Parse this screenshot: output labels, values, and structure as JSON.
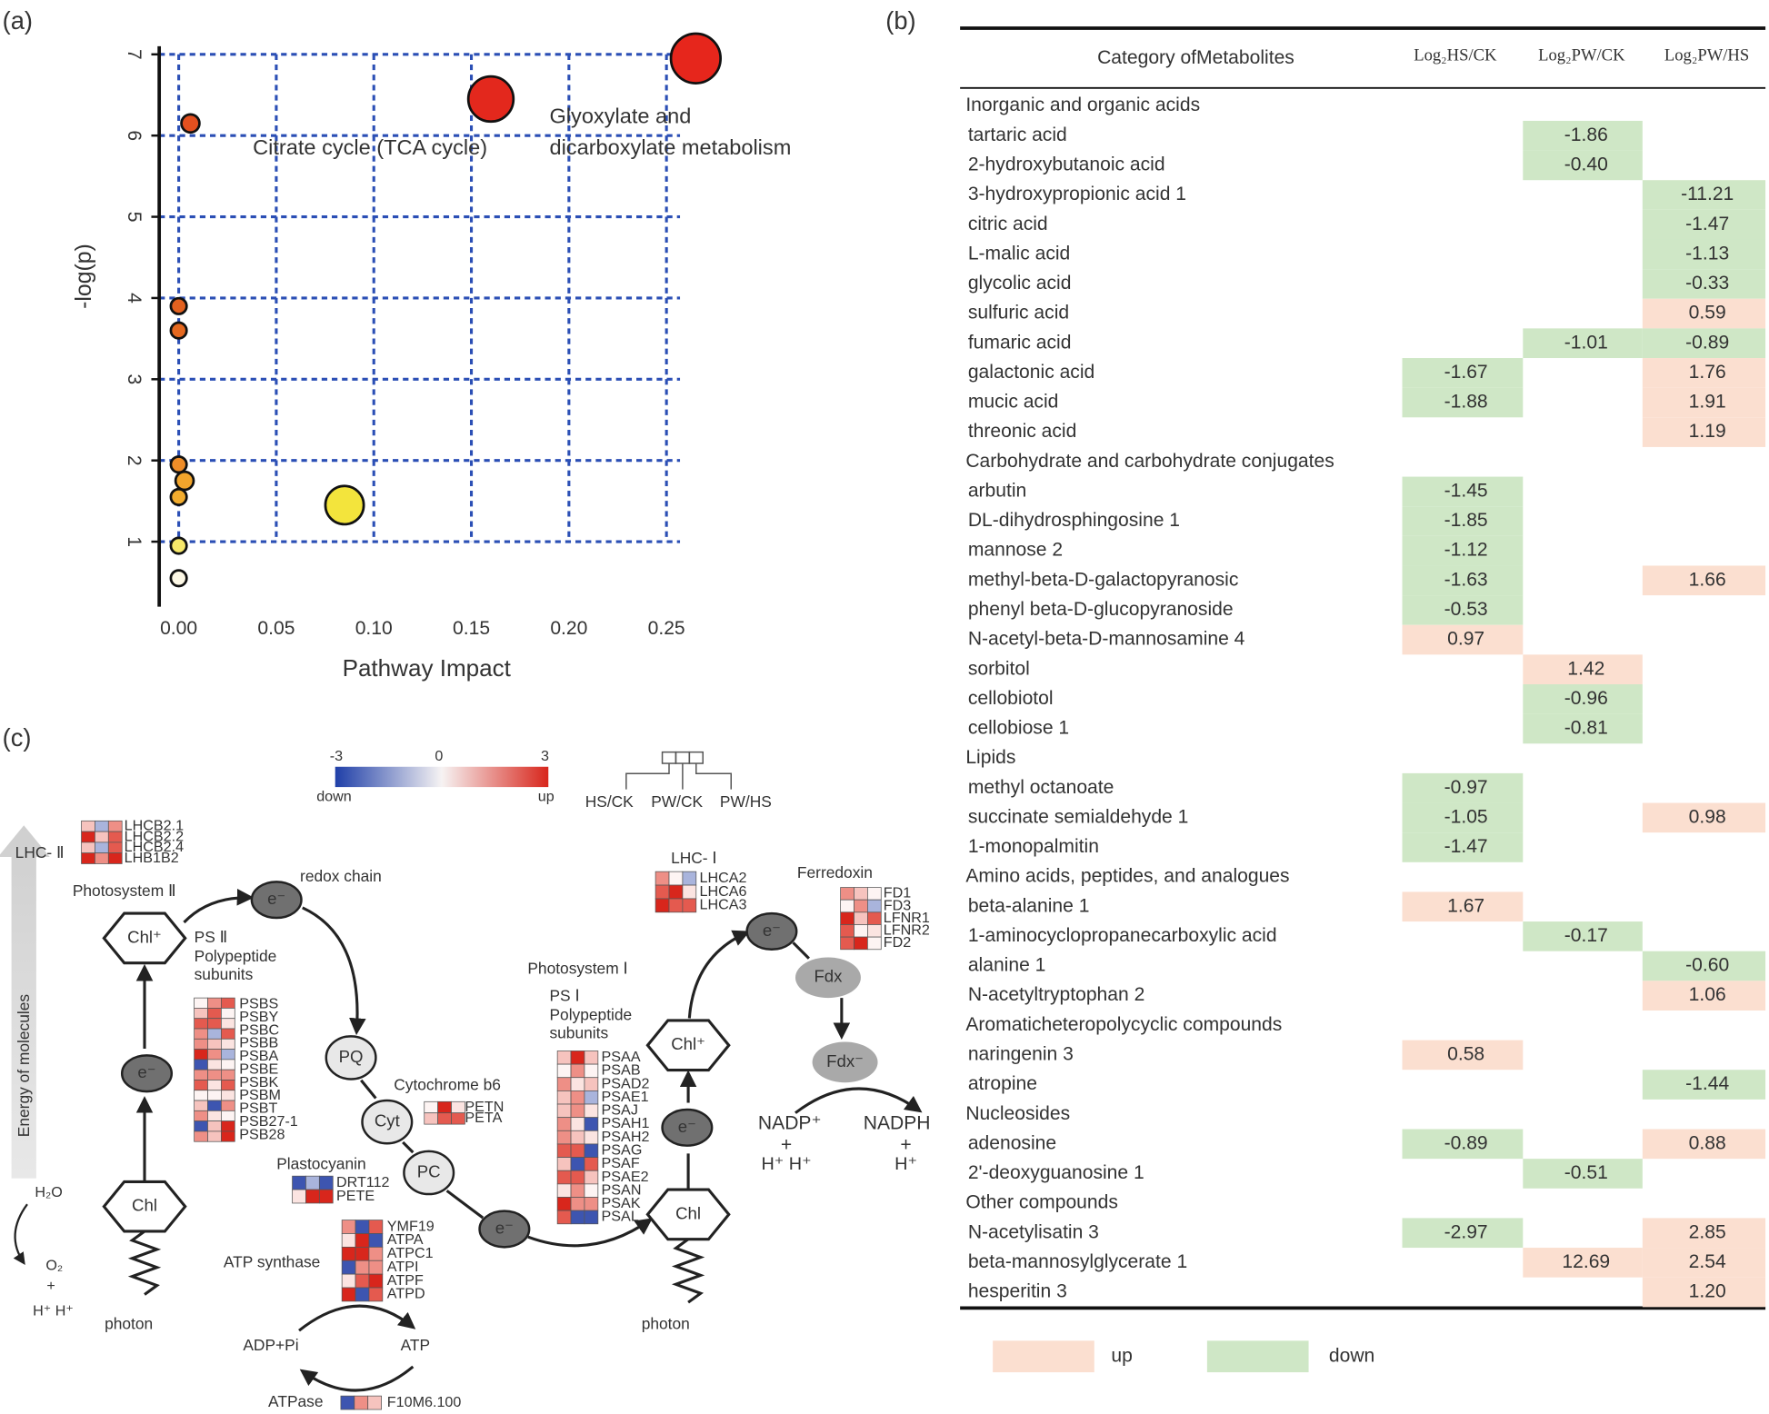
{
  "panel_labels": [
    "(a)",
    "(b)",
    "(c)"
  ],
  "chart_data": {
    "type": "scatter",
    "xlabel": "Pathway Impact",
    "ylabel": "-log(p)",
    "x": [
      0.265,
      0.16,
      0.006,
      0.0,
      0.0,
      0.0,
      0.003,
      0.0,
      0.085,
      0.0,
      0.0
    ],
    "values": [
      6.95,
      6.45,
      6.15,
      3.9,
      3.6,
      1.95,
      1.75,
      1.55,
      1.45,
      0.95,
      0.55
    ],
    "sizes": [
      22,
      20,
      8,
      7,
      7,
      7,
      8,
      7,
      17,
      7,
      7
    ],
    "colors": [
      "#e6261c",
      "#e3281d",
      "#e4501f",
      "#e3611f",
      "#e5681f",
      "#ef8d28",
      "#f2a52c",
      "#f2ac2e",
      "#f3e43c",
      "#f7e86a",
      "#fdf8e6"
    ],
    "annotations": [
      "Citrate cycle (TCA cycle)",
      "Glyoxylate and",
      "dicarboxylate metabolism"
    ],
    "xlim": [
      -0.01,
      0.26
    ],
    "ylim": [
      0.2,
      7.1
    ],
    "xticks": [
      {
        "value": 0,
        "label": "0.00"
      },
      {
        "value": 0.05,
        "label": "0.05"
      },
      {
        "value": 0.1,
        "label": "0.10"
      },
      {
        "value": 0.15,
        "label": "0.15"
      },
      {
        "value": 0.2,
        "label": "0.20"
      },
      {
        "value": 0.25,
        "label": "0.25"
      }
    ],
    "yticks": [
      1,
      2,
      3,
      4,
      5,
      6,
      7
    ],
    "grid": true,
    "grid_color": "#2b4fb5"
  },
  "table": {
    "header": [
      "Category ofMetabolites",
      "Log₂HS/CK",
      "Log₂PW/CK",
      "Log₂PW/HS"
    ],
    "up_color": "#fbdfd0",
    "down_color": "#cfe7c6",
    "legend": [
      "up",
      "down"
    ],
    "rows": [
      [
        "Inorganic and organic acids"
      ],
      [
        "tartaric acid",
        null,
        "-1.86",
        null
      ],
      [
        "2-hydroxybutanoic acid",
        null,
        "-0.40",
        null
      ],
      [
        "3-hydroxypropionic acid 1",
        null,
        null,
        "-11.21"
      ],
      [
        "citric acid",
        null,
        null,
        "-1.47"
      ],
      [
        "L-malic acid",
        null,
        null,
        "-1.13"
      ],
      [
        "glycolic acid",
        null,
        null,
        "-0.33"
      ],
      [
        "sulfuric acid",
        null,
        null,
        "0.59"
      ],
      [
        "fumaric acid",
        null,
        "-1.01",
        "-0.89"
      ],
      [
        "galactonic acid",
        "-1.67",
        null,
        "1.76"
      ],
      [
        "mucic acid",
        "-1.88",
        null,
        "1.91"
      ],
      [
        "threonic acid",
        null,
        null,
        "1.19"
      ],
      [
        "Carbohydrate and carbohydrate conjugates"
      ],
      [
        "arbutin",
        "-1.45",
        null,
        null
      ],
      [
        "DL-dihydrosphingosine 1",
        "-1.85",
        null,
        null
      ],
      [
        "mannose 2",
        "-1.12",
        null,
        null
      ],
      [
        "methyl-beta-D-galactopyranosic",
        "-1.63",
        null,
        "1.66"
      ],
      [
        "phenyl beta-D-glucopyranoside",
        "-0.53",
        null,
        null
      ],
      [
        "N-acetyl-beta-D-mannosamine 4",
        "0.97",
        null,
        null
      ],
      [
        "sorbitol",
        null,
        "1.42",
        null
      ],
      [
        "cellobiotol",
        null,
        "-0.96",
        null
      ],
      [
        "cellobiose 1",
        null,
        "-0.81",
        null
      ],
      [
        "Lipids"
      ],
      [
        "methyl octanoate",
        "-0.97",
        null,
        null
      ],
      [
        "succinate semialdehyde 1",
        "-1.05",
        null,
        "0.98"
      ],
      [
        "1-monopalmitin",
        "-1.47",
        null,
        null
      ],
      [
        "Amino acids, peptides, and analogues"
      ],
      [
        "beta-alanine 1",
        "1.67",
        null,
        null
      ],
      [
        "1-aminocyclopropanecarboxylic acid",
        null,
        "-0.17",
        null
      ],
      [
        "alanine 1",
        null,
        null,
        "-0.60"
      ],
      [
        "N-acetyltryptophan 2",
        null,
        null,
        "1.06"
      ],
      [
        "Aromaticheteropolycyclic compounds"
      ],
      [
        "naringenin 3",
        "0.58",
        null,
        null
      ],
      [
        "atropine",
        null,
        null,
        "-1.44"
      ],
      [
        "Nucleosides"
      ],
      [
        "adenosine",
        "-0.89",
        null,
        "0.88"
      ],
      [
        "2'-deoxyguanosine 1",
        null,
        "-0.51",
        null
      ],
      [
        "Other compounds"
      ],
      [
        "N-acetylisatin 3",
        "-2.97",
        null,
        "2.85"
      ],
      [
        "beta-mannosylglycerate 1",
        null,
        "12.69",
        "2.54"
      ],
      [
        "hesperitin 3",
        null,
        null,
        "1.20"
      ]
    ]
  },
  "diagram": {
    "texts": [
      "-3",
      "0",
      "3",
      "down",
      "up",
      "HS/CK",
      "PW/CK",
      "PW/HS",
      "Photosystem Ⅱ",
      "redox chain",
      "PS Ⅱ",
      "Polypeptide",
      "subunits",
      "Photosystem Ⅰ",
      "PS Ⅰ",
      "Polypeptide",
      "subunits",
      "Cytochrome b6",
      "Plastocyanin",
      "ATP synthase",
      "ADP+Pi",
      "ATP",
      "ATPase",
      "LHC- Ⅰ",
      "Ferredoxin",
      "NADP⁺",
      "+",
      "H⁺  H⁺",
      "NADPH",
      "+",
      "H⁺",
      "Energy of molecules",
      "H₂O",
      "O₂",
      "+",
      "H⁺ H⁺",
      "photon",
      "photon",
      "LHC- Ⅱ"
    ],
    "nodes": [
      "Chl⁺",
      "e⁻",
      "Chl",
      "e⁻",
      "PQ",
      "Cyt",
      "PC",
      "e⁻",
      "Chl",
      "e⁻",
      "Chl⁺",
      "e⁻",
      "Fdx",
      "Fdx⁻"
    ],
    "gene_groups": [
      [
        "LHCB2.1",
        "LHCB2.2",
        "LHCB2.4",
        "LHB1B2"
      ],
      [
        "PSBS",
        "PSBY",
        "PSBC",
        "PSBB",
        "PSBA",
        "PSBE",
        "PSBK",
        "PSBM",
        "PSBT",
        "PSB27-1",
        "PSB28"
      ],
      [
        "PETN",
        "PETA"
      ],
      [
        "DRT112",
        "PETE"
      ],
      [
        "YMF19",
        "ATPA",
        "ATPC1",
        "ATPI",
        "ATPF",
        "ATPD"
      ],
      [
        "F10M6.100"
      ],
      [
        "PSAA",
        "PSAB",
        "PSAD2",
        "PSAE1",
        "PSAJ",
        "PSAH1",
        "PSAH2",
        "PSAG",
        "PSAF",
        "PSAE2",
        "PSAN",
        "PSAK",
        "PSAL"
      ],
      [
        "LHCA2",
        "LHCA6",
        "LHCA3"
      ],
      [
        "FD1",
        "FD3",
        "LFNR1",
        "LFNR2",
        "FD2"
      ]
    ]
  }
}
